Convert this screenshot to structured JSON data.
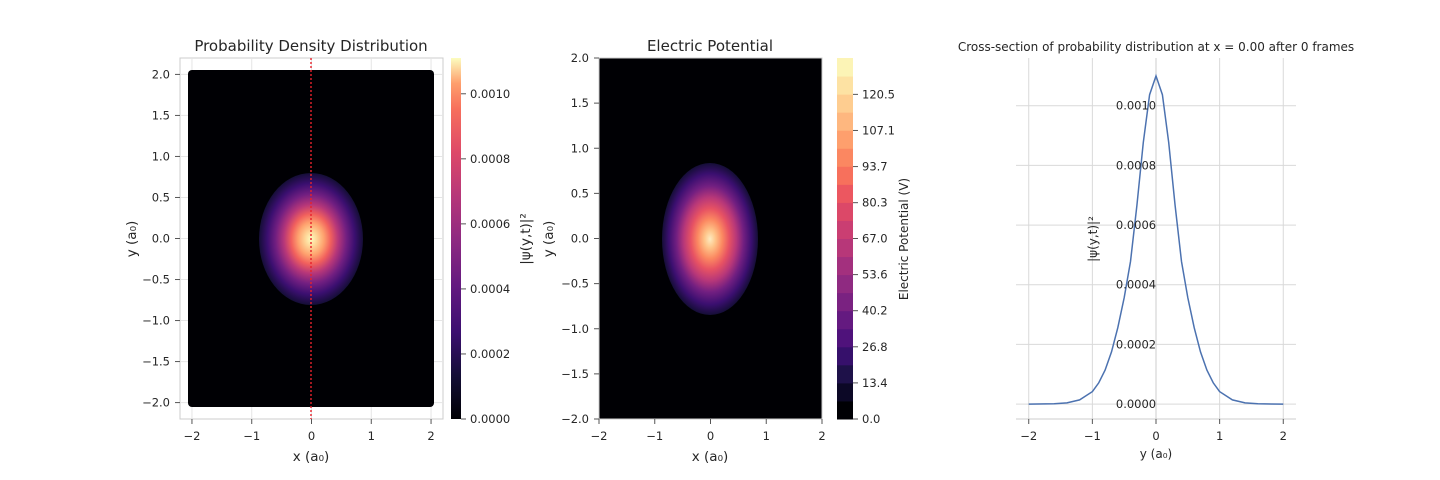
{
  "chart_data": [
    {
      "type": "heatmap",
      "title": "Probability Density Distribution",
      "xlabel": "x (a₀)",
      "ylabel": "y (a₀)",
      "xlim": [
        -2.2,
        2.2
      ],
      "ylim": [
        -2.2,
        2.2
      ],
      "x_ticks": [
        -2,
        -1,
        0,
        1,
        2
      ],
      "y_ticks": [
        -2.0,
        -1.5,
        -1.0,
        -0.5,
        0.0,
        0.5,
        1.0,
        1.5,
        2.0
      ],
      "grid": true,
      "colormap": "magma",
      "peak_value": 0.0011,
      "peak_center": [
        0,
        0
      ],
      "spread_x": 0.45,
      "spread_y": 0.35,
      "cross_section_line": {
        "x": 0.0,
        "color": "#e8212b",
        "style": "dotted"
      },
      "colorbar": {
        "label": "|ψ(y,t)|²",
        "min": 0.0,
        "max": 0.00111,
        "ticks": [
          "0.0000",
          "0.0002",
          "0.0004",
          "0.0006",
          "0.0008",
          "0.0010"
        ]
      }
    },
    {
      "type": "heatmap",
      "title": "Electric Potential",
      "xlabel": "x (a₀)",
      "ylabel": "y (a₀)",
      "xlim": [
        -2,
        2
      ],
      "ylim": [
        -2,
        2
      ],
      "x_ticks": [
        -2,
        -1,
        0,
        1,
        2
      ],
      "y_ticks": [
        -2.0,
        -1.5,
        -1.0,
        -0.5,
        0.0,
        0.5,
        1.0,
        1.5,
        2.0
      ],
      "grid": false,
      "colormap": "magma",
      "peak_value": 134,
      "peak_center": [
        0,
        0
      ],
      "spread_x": 0.38,
      "spread_y": 0.42,
      "colorbar": {
        "label": "Electric Potential (V)",
        "min": 0.0,
        "max": 134,
        "levels": 20,
        "ticks": [
          "0.0",
          "13.4",
          "26.8",
          "40.2",
          "53.6",
          "67.0",
          "80.3",
          "93.7",
          "107.1",
          "120.5"
        ]
      }
    },
    {
      "type": "line",
      "title": "Cross-section of probability distribution at x = 0.00 after 0 frames",
      "xlabel": "y (a₀)",
      "ylabel": "|ψ(y,t)|²",
      "xlim": [
        -2.2,
        2.2
      ],
      "ylim": [
        -5e-05,
        0.00116
      ],
      "x_ticks": [
        -2,
        -1,
        0,
        1,
        2
      ],
      "y_ticks": [
        "0.0000",
        "0.0002",
        "0.0004",
        "0.0006",
        "0.0008",
        "0.0010"
      ],
      "grid": true,
      "series": [
        {
          "color": "#4c72b0",
          "x": [
            -2.0,
            -1.6,
            -1.4,
            -1.2,
            -1.0,
            -0.9,
            -0.8,
            -0.7,
            -0.6,
            -0.5,
            -0.4,
            -0.3,
            -0.2,
            -0.1,
            0.0,
            0.1,
            0.2,
            0.3,
            0.4,
            0.5,
            0.6,
            0.7,
            0.8,
            0.9,
            1.0,
            1.2,
            1.4,
            1.6,
            2.0
          ],
          "y": [
            0.0,
            1e-06,
            4e-06,
            1.4e-05,
            4.2e-05,
            7.1e-05,
            0.000114,
            0.000175,
            0.000256,
            0.000357,
            0.000478,
            0.000666,
            0.000877,
            0.001037,
            0.0011,
            0.001037,
            0.000877,
            0.000666,
            0.000478,
            0.000357,
            0.000256,
            0.000175,
            0.000114,
            7.1e-05,
            4.2e-05,
            1.4e-05,
            4e-06,
            1e-06,
            0.0
          ]
        }
      ]
    }
  ]
}
